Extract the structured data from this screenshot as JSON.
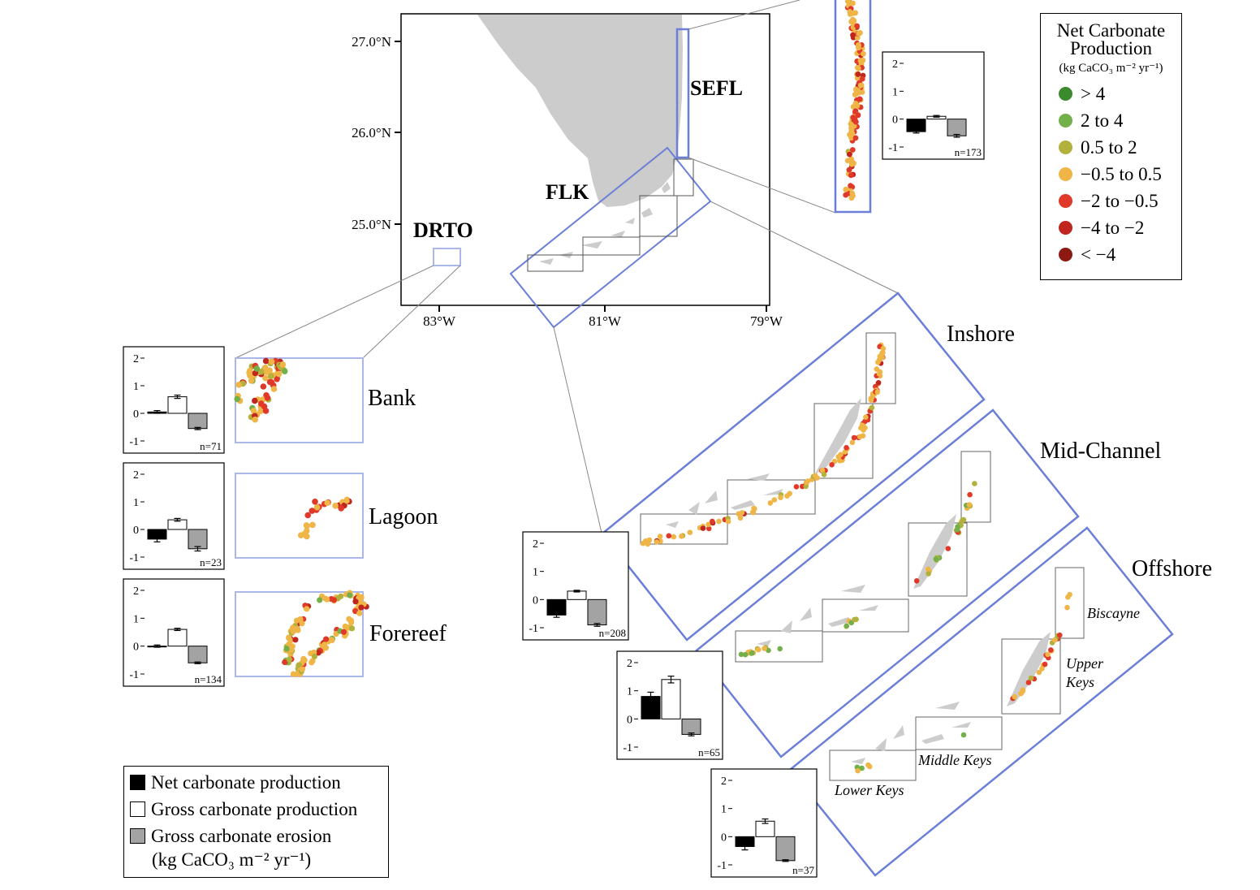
{
  "map": {
    "lat_labels": [
      "27.0°N",
      "26.0°N",
      "25.0°N"
    ],
    "lon_labels": [
      "83°W",
      "81°W",
      "79°W"
    ],
    "regions": [
      "SEFL",
      "FLK",
      "DRTO"
    ],
    "land_color": "#cccccc",
    "box_color": "#6b7fd9"
  },
  "habitats": {
    "drto": [
      "Bank",
      "Lagoon",
      "Forereef"
    ],
    "flk": [
      "Inshore",
      "Mid-Channel",
      "Offshore"
    ]
  },
  "subregions": [
    "Biscayne",
    "Upper",
    "Keys",
    "Middle Keys",
    "Lower Keys"
  ],
  "color_legend": {
    "title_line1": "Net Carbonate",
    "title_line2": "Production",
    "unit": "(kg CaCO₃ m⁻² yr⁻¹)",
    "classes": [
      {
        "label": "> 4",
        "color": "#3b8a2e"
      },
      {
        "label": "2 to 4",
        "color": "#74b04a"
      },
      {
        "label": "0.5 to 2",
        "color": "#b1b13c"
      },
      {
        "label": "−0.5 to 0.5",
        "color": "#f0b547"
      },
      {
        "label": "−2 to −0.5",
        "color": "#e0392a"
      },
      {
        "label": "−4 to −2",
        "color": "#c0261f"
      },
      {
        "label": "< −4",
        "color": "#8c1a12"
      }
    ]
  },
  "bar_legend": {
    "items": [
      {
        "label": "Net carbonate production",
        "color": "#000000"
      },
      {
        "label": "Gross carbonate production",
        "color": "#ffffff"
      },
      {
        "label": "Gross carbonate erosion",
        "color": "#a3a3a3"
      }
    ],
    "unit": "(kg CaCO₃ m⁻² yr⁻¹)"
  },
  "chart_data": [
    {
      "type": "bar",
      "panel": "SEFL",
      "categories": [
        "Net carbonate production",
        "Gross carbonate production",
        "Gross carbonate erosion"
      ],
      "values": [
        -0.45,
        0.1,
        -0.6
      ],
      "errors": [
        0.05,
        0.03,
        0.05
      ],
      "ylim": [
        -1,
        2
      ],
      "yticks": [
        "2",
        "1",
        "0",
        "-1"
      ],
      "n_label": "n=173"
    },
    {
      "type": "bar",
      "panel": "Bank",
      "categories": [
        "Net carbonate production",
        "Gross carbonate production",
        "Gross carbonate erosion"
      ],
      "values": [
        0.05,
        0.6,
        -0.55
      ],
      "errors": [
        0.05,
        0.06,
        0.04
      ],
      "ylim": [
        -1,
        2
      ],
      "yticks": [
        "2",
        "1",
        "0",
        "-1"
      ],
      "n_label": "n=71"
    },
    {
      "type": "bar",
      "panel": "Lagoon",
      "categories": [
        "Net carbonate production",
        "Gross carbonate production",
        "Gross carbonate erosion"
      ],
      "values": [
        -0.35,
        0.35,
        -0.7
      ],
      "errors": [
        0.1,
        0.05,
        0.08
      ],
      "ylim": [
        -1,
        2
      ],
      "yticks": [
        "2",
        "1",
        "0",
        "-1"
      ],
      "n_label": "n=23"
    },
    {
      "type": "bar",
      "panel": "Forereef",
      "categories": [
        "Net carbonate production",
        "Gross carbonate production",
        "Gross carbonate erosion"
      ],
      "values": [
        0.0,
        0.6,
        -0.6
      ],
      "errors": [
        0.04,
        0.04,
        0.03
      ],
      "ylim": [
        -1,
        2
      ],
      "yticks": [
        "2",
        "1",
        "0",
        "-1"
      ],
      "n_label": "n=134"
    },
    {
      "type": "bar",
      "panel": "FLK",
      "categories": [
        "Net carbonate production",
        "Gross carbonate production",
        "Gross carbonate erosion"
      ],
      "values": [
        -0.55,
        0.3,
        -0.9
      ],
      "errors": [
        0.08,
        0.03,
        0.05
      ],
      "ylim": [
        -1,
        2
      ],
      "yticks": [
        "2",
        "1",
        "0",
        "-1"
      ],
      "n_label": "n=208"
    },
    {
      "type": "bar",
      "panel": "Mid-Channel",
      "categories": [
        "Net carbonate production",
        "Gross carbonate production",
        "Gross carbonate erosion"
      ],
      "values": [
        0.8,
        1.4,
        -0.55
      ],
      "errors": [
        0.15,
        0.12,
        0.05
      ],
      "ylim": [
        -1,
        2
      ],
      "yticks": [
        "2",
        "1",
        "0",
        "-1"
      ],
      "n_label": "n=65"
    },
    {
      "type": "bar",
      "panel": "Offshore",
      "categories": [
        "Net carbonate production",
        "Gross carbonate production",
        "Gross carbonate erosion"
      ],
      "values": [
        -0.35,
        0.55,
        -0.85
      ],
      "errors": [
        0.12,
        0.08,
        0.03
      ],
      "ylim": [
        -1,
        2
      ],
      "yticks": [
        "2",
        "1",
        "0",
        "-1"
      ],
      "n_label": "n=37"
    }
  ]
}
